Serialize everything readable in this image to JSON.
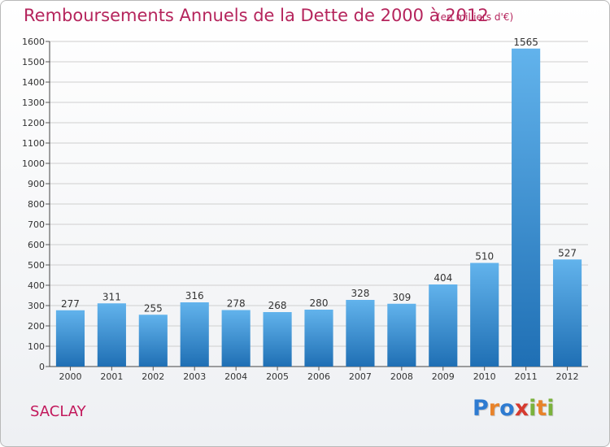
{
  "title": "Remboursements Annuels de la Dette de 2000 à 2012",
  "subtitle": "(en milliers d'€)",
  "city": "SACLAY",
  "logo": {
    "letters": [
      "P",
      "r",
      "o",
      "x",
      "i",
      "t",
      "i"
    ],
    "colors": [
      "#2e7bd1",
      "#e8832a",
      "#2e7bd1",
      "#d63a2f",
      "#7bb23c",
      "#e8832a",
      "#7bb23c"
    ]
  },
  "colors": {
    "title": "#b5245c",
    "bar_top": "#62b3ec",
    "bar_bottom": "#1f6fb4",
    "grid": "#cfcfcf"
  },
  "chart_data": {
    "type": "bar",
    "categories": [
      "2000",
      "2001",
      "2002",
      "2003",
      "2004",
      "2005",
      "2006",
      "2007",
      "2008",
      "2009",
      "2010",
      "2011",
      "2012"
    ],
    "values": [
      277,
      311,
      255,
      316,
      278,
      268,
      280,
      328,
      309,
      404,
      510,
      1565,
      527
    ],
    "ylim": [
      0,
      1600
    ],
    "yticks": [
      0,
      100,
      200,
      300,
      400,
      500,
      600,
      700,
      800,
      900,
      1000,
      1100,
      1200,
      1300,
      1400,
      1500,
      1600
    ],
    "grid": true
  }
}
